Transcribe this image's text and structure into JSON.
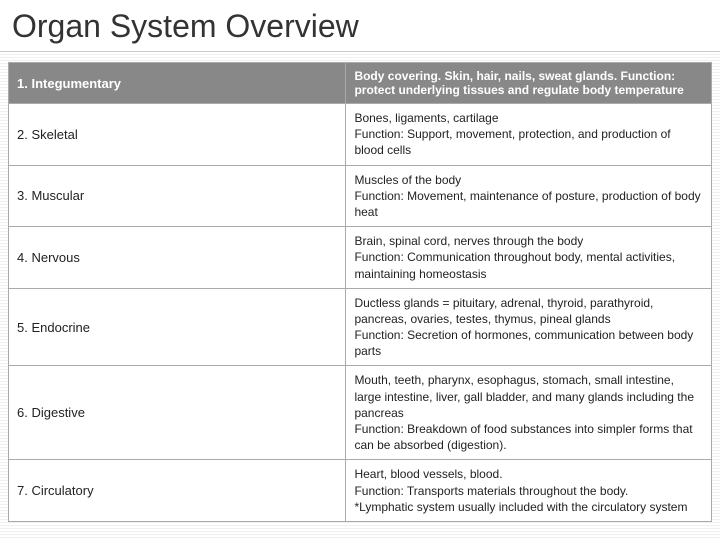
{
  "title": "Organ System Overview",
  "header": {
    "left": "1. Integumentary",
    "right": "Body covering. Skin, hair, nails, sweat glands. Function: protect underlying tissues and regulate body temperature"
  },
  "rows": [
    {
      "left": "2. Skeletal",
      "right": "Bones, ligaments, cartilage\nFunction: Support, movement, protection, and production of blood cells"
    },
    {
      "left": "3. Muscular",
      "right": "Muscles of the body\nFunction: Movement, maintenance of posture, production of body heat"
    },
    {
      "left": "4. Nervous",
      "right": "Brain, spinal cord, nerves through the body\nFunction: Communication throughout body, mental activities, maintaining homeostasis"
    },
    {
      "left": "5. Endocrine",
      "right": "Ductless glands = pituitary, adrenal, thyroid, parathyroid, pancreas, ovaries, testes, thymus, pineal glands\nFunction: Secretion of hormones, communication between body parts"
    },
    {
      "left": "6. Digestive",
      "right": "Mouth, teeth, pharynx, esophagus, stomach, small intestine, large intestine, liver, gall bladder, and many glands including the pancreas\nFunction: Breakdown of food substances into simpler forms that can be absorbed (digestion)."
    },
    {
      "left": "7. Circulatory",
      "right": "Heart, blood vessels, blood.\nFunction: Transports materials throughout the body.\n*Lymphatic system usually included with the circulatory system"
    }
  ],
  "colors": {
    "header_bg": "#888888",
    "header_text": "#ffffff",
    "body_bg": "#ffffff",
    "body_text": "#222222",
    "border": "#aaaaaa",
    "page_bg": "#ffffff",
    "stripe": "#f0f0f0"
  },
  "typography": {
    "title_fontsize": 32,
    "header_fontsize": 12,
    "body_fontsize_large": 13,
    "body_fontsize_small": 11,
    "font_family": "Verdana"
  },
  "layout": {
    "left_col_width_pct": 48,
    "right_col_width_pct": 52
  }
}
